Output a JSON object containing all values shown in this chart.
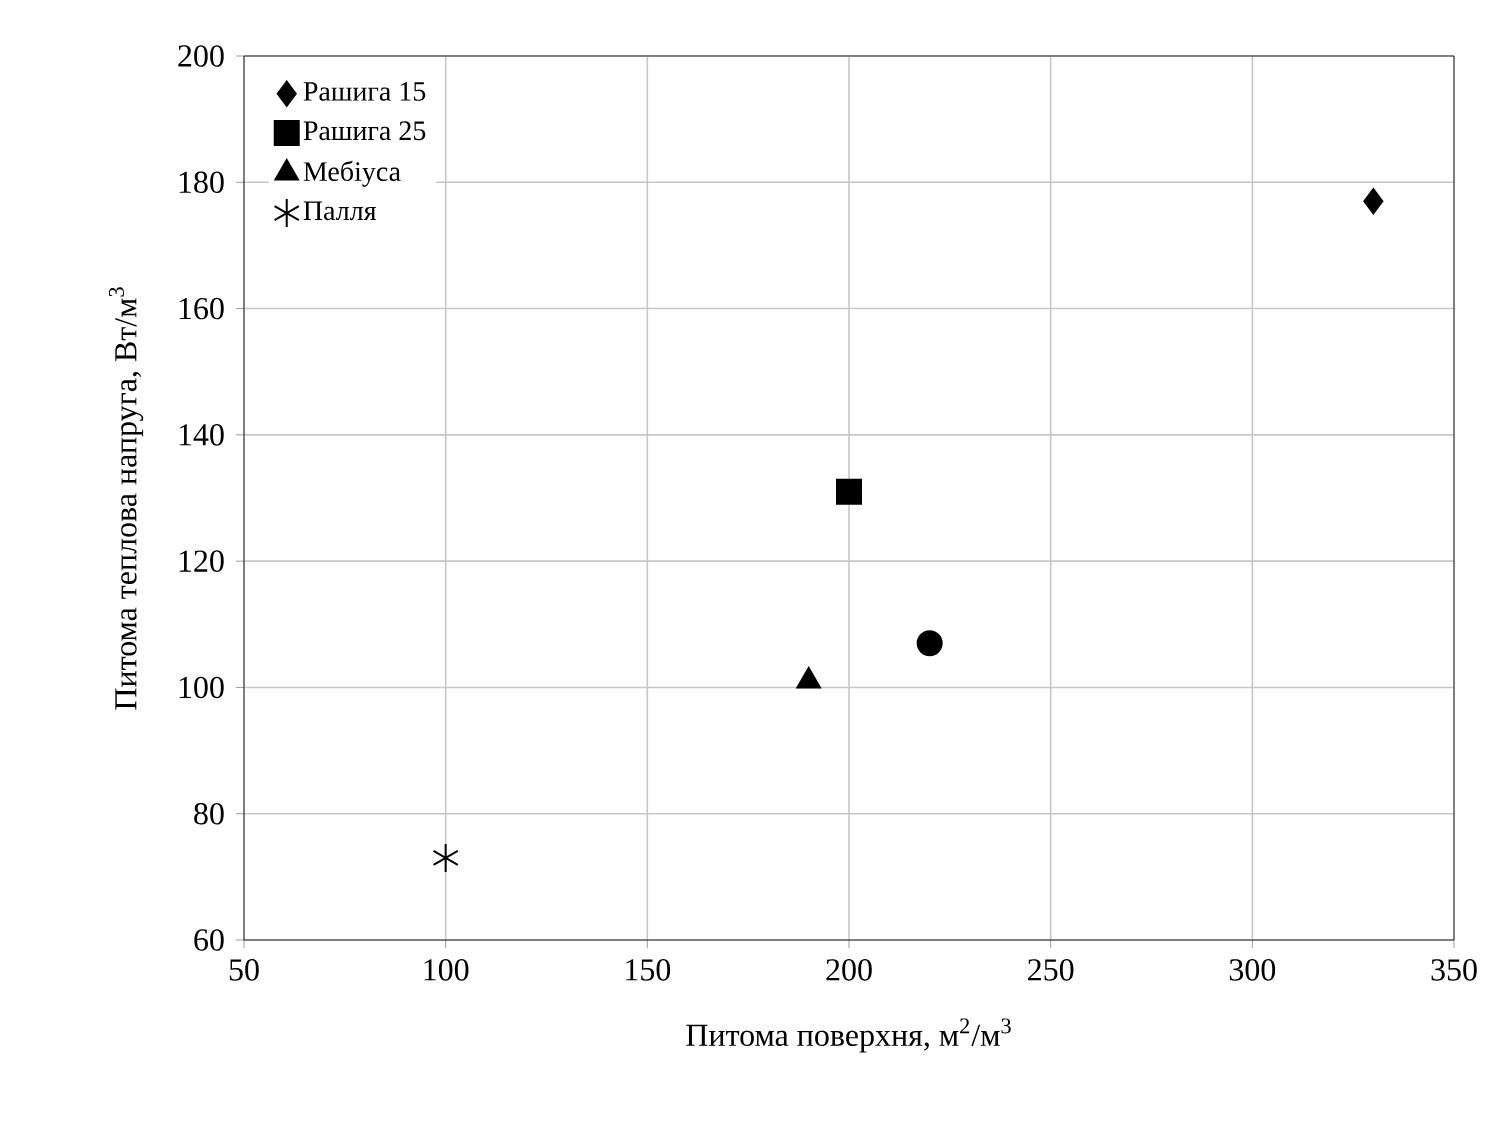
{
  "chart_data": {
    "type": "scatter",
    "xlabel": "Питома поверхня, м$^{2}$/м$^{3}$",
    "ylabel": "Питома теплова напруга, Вт/м$^{3}$",
    "xlim": [
      50,
      350
    ],
    "xticks": [
      50,
      100,
      150,
      200,
      250,
      300,
      350
    ],
    "ylim": [
      60,
      200
    ],
    "yticks": [
      60,
      80,
      100,
      120,
      140,
      160,
      180,
      200
    ],
    "grid": true,
    "legend": "top left",
    "series": [
      {
        "name": "Рашига 15",
        "color": "#000000",
        "marker": "diamond",
        "x": [
          330
        ],
        "values": [
          177
        ]
      },
      {
        "name": "Рашига 25",
        "color": "#000000",
        "marker": "square",
        "x": [
          200
        ],
        "values": [
          131
        ]
      },
      {
        "name": "Мебіуса",
        "color": "#000000",
        "marker": "triangle",
        "x": [
          190
        ],
        "values": [
          101
        ]
      },
      {
        "color": "#000000",
        "marker": "circle",
        "x": [
          220
        ],
        "values": [
          107
        ]
      },
      {
        "name": "Палля",
        "color": "#000000",
        "marker": "cross",
        "x": [
          100
        ],
        "values": [
          73
        ]
      }
    ]
  }
}
